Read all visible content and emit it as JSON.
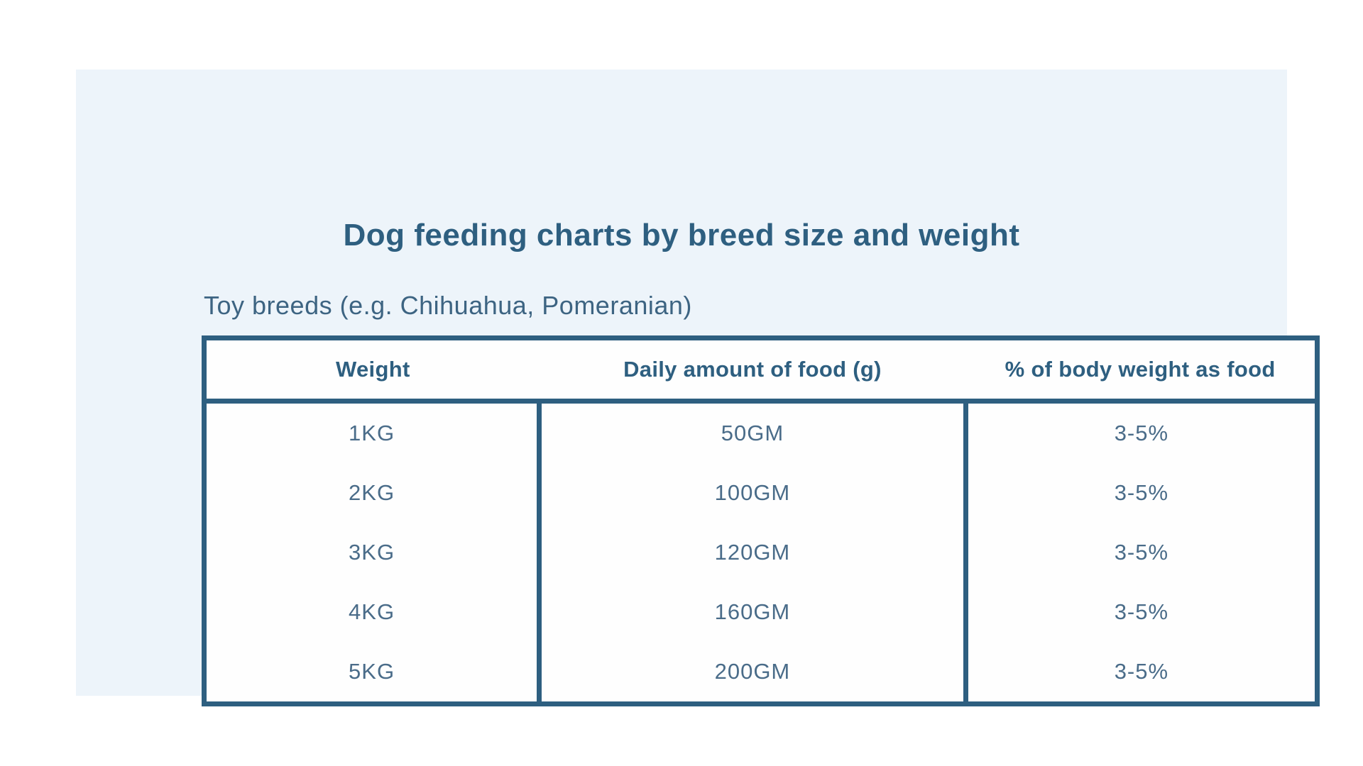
{
  "page": {
    "title": "Dog feeding charts by breed size and weight",
    "subtitle": "Toy breeds (e.g. Chihuahua, Pomeranian)"
  },
  "colors": {
    "accent_dark_blue": "#2e5f80",
    "body_text_blue": "#4a6c89",
    "subtitle_blue": "#3d6482",
    "panel_background": "#edf4fa",
    "cell_background": "#fefefe",
    "page_background": "#ffffff"
  },
  "chart_data": {
    "type": "table",
    "title": "Dog feeding charts by breed size and weight",
    "subtitle": "Toy breeds (e.g. Chihuahua, Pomeranian)",
    "columns": [
      "Weight",
      "Daily amount of food (g)",
      "% of body weight as food"
    ],
    "rows": [
      [
        "1KG",
        "50GM",
        "3-5%"
      ],
      [
        "2KG",
        "100GM",
        "3-5%"
      ],
      [
        "3KG",
        "120GM",
        "3-5%"
      ],
      [
        "4KG",
        "160GM",
        "3-5%"
      ],
      [
        "5KG",
        "200GM",
        "3-5%"
      ]
    ],
    "layout_hints": {
      "header_row_separator": true,
      "vertical_dividers_in_body_only": true,
      "all_cells_centered": true
    }
  }
}
